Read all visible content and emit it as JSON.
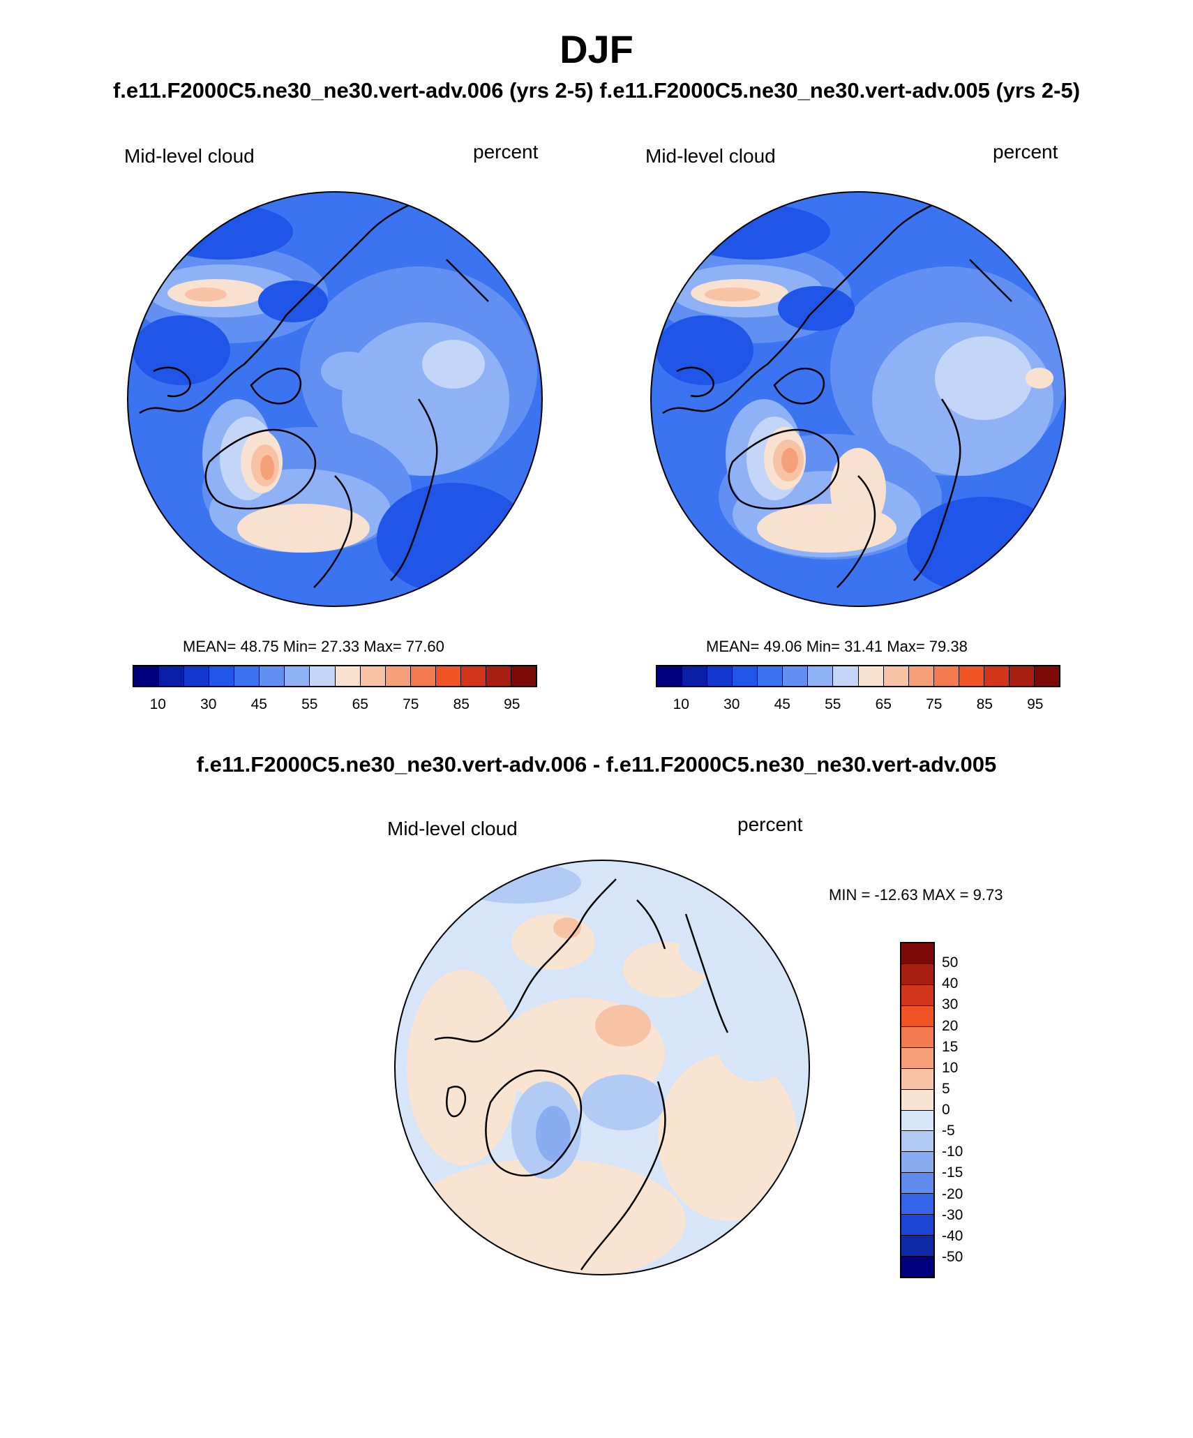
{
  "title": "DJF",
  "subtitle_left": "f.e11.F2000C5.ne30_ne30.vert-adv.006 (yrs 2-5)",
  "subtitle_right": "f.e11.F2000C5.ne30_ne30.vert-adv.005 (yrs 2-5)",
  "panels": [
    {
      "variable": "Mid-level cloud",
      "units": "percent",
      "stats": "MEAN=  48.75  Min=  27.33  Max=  77.60"
    },
    {
      "variable": "Mid-level cloud",
      "units": "percent",
      "stats": "MEAN=  49.06  Min=  31.41  Max=  79.38"
    }
  ],
  "abs_colorbar": {
    "colors": [
      "#00007f",
      "#0a1fa8",
      "#1238d0",
      "#1f56e8",
      "#3b74f0",
      "#6290f2",
      "#8fb1f5",
      "#c3d6f8",
      "#f8e1cf",
      "#f8c2a4",
      "#f6a07a",
      "#f47a4f",
      "#ef5524",
      "#d2361a",
      "#a81f12",
      "#7c0a09"
    ],
    "labels": [
      "10",
      "30",
      "45",
      "55",
      "65",
      "75",
      "85",
      "95"
    ]
  },
  "diff": {
    "title": "f.e11.F2000C5.ne30_ne30.vert-adv.006 - f.e11.F2000C5.ne30_ne30.vert-adv.005",
    "variable": "Mid-level cloud",
    "units": "percent",
    "minmax": "MIN = -12.63 MAX =   9.73",
    "colorbar": {
      "colors_top_to_bottom": [
        "#7c0a09",
        "#a81f12",
        "#d2361a",
        "#ef5524",
        "#f47a4f",
        "#f6a07a",
        "#f8c2a4",
        "#f9e3d1",
        "#d6e5f8",
        "#b2cbf4",
        "#8aacf0",
        "#5f8bec",
        "#3464e8",
        "#1c45d6",
        "#0d29a8",
        "#00007f"
      ],
      "labels": [
        "50",
        "40",
        "30",
        "20",
        "15",
        "10",
        "5",
        "0",
        "-5",
        "-10",
        "-15",
        "-20",
        "-30",
        "-40",
        "-50"
      ]
    }
  }
}
